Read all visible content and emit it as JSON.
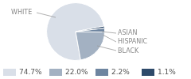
{
  "chart_data": {
    "type": "pie",
    "categories": [
      "WHITE",
      "BLACK",
      "HISPANIC",
      "ASIAN"
    ],
    "values": [
      74.7,
      22.0,
      2.2,
      1.1
    ],
    "value_labels": [
      "74.7%",
      "22.0%",
      "2.2%",
      "1.1%"
    ],
    "colors": [
      "#d9dfe8",
      "#a3b1c2",
      "#6e85a0",
      "#2e4a6a"
    ],
    "legend": "bottom"
  }
}
